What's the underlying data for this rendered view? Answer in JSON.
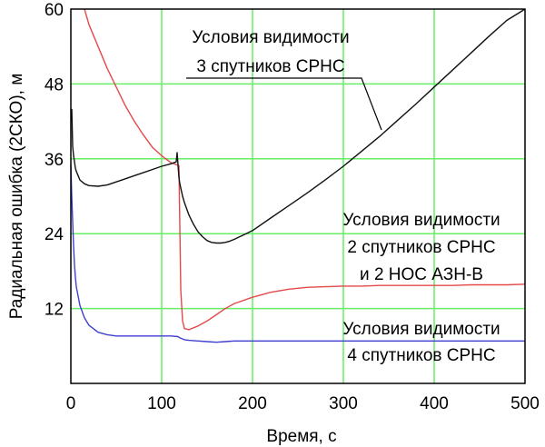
{
  "chart_data": {
    "type": "line",
    "title": "",
    "xlabel": "Время, с",
    "ylabel": "Радиальная ошибка (2СКО), м",
    "xlim": [
      0,
      500
    ],
    "ylim": [
      0,
      60
    ],
    "x_ticks": [
      0,
      100,
      200,
      300,
      400,
      500
    ],
    "y_ticks": [
      12,
      24,
      36,
      48,
      60
    ],
    "grid": true,
    "grid_color": "#66ee66",
    "series": [
      {
        "color": "#e34a4a",
        "x": [
          15,
          20,
          30,
          40,
          50,
          60,
          70,
          80,
          90,
          100,
          110,
          119,
          120,
          121,
          123,
          125,
          130,
          140,
          150,
          160,
          170,
          180,
          200,
          220,
          240,
          260,
          280,
          300,
          320,
          340,
          360,
          380,
          400,
          420,
          440,
          460,
          480,
          500
        ],
        "y": [
          60,
          57.5,
          54,
          50.5,
          47.5,
          44.5,
          42,
          39.8,
          37.8,
          36.5,
          35.4,
          34.9,
          25,
          15,
          10,
          8.8,
          8.6,
          9.2,
          10,
          11,
          12,
          12.8,
          13.8,
          14.6,
          15.1,
          15.4,
          15.5,
          15.6,
          15.6,
          15.7,
          15.7,
          15.7,
          15.7,
          15.7,
          15.8,
          15.8,
          15.8,
          15.9
        ]
      },
      {
        "color": "#111111",
        "x": [
          1,
          2,
          3,
          4,
          5,
          6,
          8,
          10,
          15,
          20,
          30,
          40,
          50,
          60,
          70,
          80,
          90,
          100,
          110,
          116,
          117,
          118,
          119,
          120,
          123,
          125,
          130,
          135,
          140,
          145,
          150,
          155,
          160,
          165,
          170,
          175,
          180,
          190,
          200,
          220,
          240,
          260,
          280,
          300,
          320,
          340,
          360,
          380,
          400,
          420,
          440,
          460,
          480,
          500
        ],
        "y": [
          44,
          38,
          36.5,
          35.5,
          34.5,
          34,
          33.3,
          32.6,
          32,
          31.7,
          31.6,
          31.8,
          32.3,
          32.8,
          33.3,
          33.8,
          34.3,
          34.8,
          35.2,
          35.5,
          37,
          35,
          33,
          32,
          30,
          29,
          27,
          25.5,
          24.3,
          23.5,
          22.9,
          22.6,
          22.5,
          22.5,
          22.6,
          22.8,
          23.1,
          23.8,
          24.5,
          26.5,
          28.5,
          30.5,
          32.6,
          34.8,
          37.2,
          39.6,
          42.2,
          44.8,
          47.5,
          50.2,
          52.9,
          55.6,
          58.2,
          60
        ]
      },
      {
        "color": "#3f3fd0",
        "x": [
          0,
          1,
          2,
          3,
          4,
          5,
          6,
          8,
          10,
          15,
          20,
          30,
          40,
          50,
          60,
          80,
          100,
          110,
          118,
          120,
          125,
          130,
          140,
          150,
          160,
          170,
          180,
          200,
          250,
          300,
          350,
          400,
          450,
          500
        ],
        "y": [
          35,
          30,
          26,
          22,
          19,
          17,
          15.5,
          14,
          12.5,
          10.5,
          9.3,
          8.2,
          7.8,
          7.6,
          7.6,
          7.6,
          7.6,
          7.6,
          7.5,
          7.3,
          7,
          6.9,
          6.8,
          6.7,
          6.6,
          6.7,
          6.8,
          6.8,
          6.8,
          6.8,
          6.8,
          6.8,
          6.8,
          6.8
        ]
      }
    ],
    "annotations": [
      {
        "lines": [
          "Условия видимости",
          "3 спутников СРНС"
        ]
      },
      {
        "lines": [
          "Условия видимости",
          "2 спутников СРНС",
          "и 2 НОС АЗН-В"
        ]
      },
      {
        "lines": [
          "Условия видимости",
          "4 спутников СРНС"
        ]
      }
    ]
  }
}
